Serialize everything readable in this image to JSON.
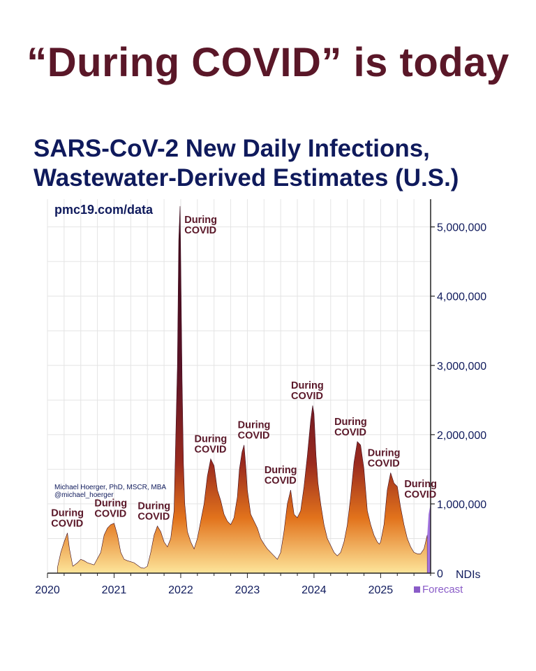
{
  "headline": "“During COVID” is today",
  "chart_data": {
    "type": "area",
    "title_lines": [
      "SARS-CoV-2 New Daily Infections,",
      "Wastewater-Derived Estimates (U.S.)"
    ],
    "source": "pmc19.com/data",
    "credit_name": "Michael Hoerger, PhD, MSCR, MBA",
    "credit_handle": "@michael_hoerger",
    "y_unit_label": "NDIs",
    "ylim": [
      0,
      5400000
    ],
    "y_ticks": [
      0,
      1000000,
      2000000,
      3000000,
      4000000,
      5000000
    ],
    "y_tick_labels": [
      "0",
      "1,000,000",
      "2,000,000",
      "3,000,000",
      "4,000,000",
      "5,000,000"
    ],
    "xlim": [
      2020.0,
      2025.75
    ],
    "x_ticks": [
      2020,
      2021,
      2022,
      2023,
      2024,
      2025
    ],
    "x_tick_labels": [
      "2020",
      "2021",
      "2022",
      "2023",
      "2024",
      "2025"
    ],
    "grid": true,
    "legend": {
      "position": "bottom-right",
      "label": "Forecast",
      "color": "#8a5cc8"
    },
    "colors": {
      "title": "#0f1a5c",
      "headline": "#5a1728",
      "annotation": "#5a1728",
      "fill_top": "#4a0e22",
      "fill_mid": "#c0481a",
      "fill_bottom": "#fcd24a",
      "forecast": "#9966dd"
    },
    "series": [
      {
        "x": [
          2020.15,
          2020.2,
          2020.25,
          2020.3,
          2020.33,
          2020.38,
          2020.45,
          2020.5,
          2020.55,
          2020.6,
          2020.7,
          2020.8,
          2020.85,
          2020.9,
          2020.95,
          2021.0,
          2021.05,
          2021.1,
          2021.15,
          2021.2,
          2021.3,
          2021.4,
          2021.45,
          2021.5,
          2021.55,
          2021.6,
          2021.65,
          2021.7,
          2021.75,
          2021.8,
          2021.85,
          2021.9,
          2021.95,
          2021.97,
          2021.99,
          2022.0,
          2022.02,
          2022.04,
          2022.06,
          2022.08,
          2022.1,
          2022.15,
          2022.2,
          2022.25,
          2022.3,
          2022.35,
          2022.4,
          2022.45,
          2022.5,
          2022.55,
          2022.6,
          2022.65,
          2022.7,
          2022.75,
          2022.8,
          2022.85,
          2022.88,
          2022.92,
          2022.95,
          2022.98,
          2023.0,
          2023.05,
          2023.1,
          2023.15,
          2023.2,
          2023.25,
          2023.3,
          2023.35,
          2023.4,
          2023.45,
          2023.5,
          2023.55,
          2023.6,
          2023.65,
          2023.7,
          2023.75,
          2023.8,
          2023.85,
          2023.9,
          2023.95,
          2023.98,
          2024.0,
          2024.03,
          2024.06,
          2024.1,
          2024.15,
          2024.2,
          2024.3,
          2024.35,
          2024.4,
          2024.45,
          2024.5,
          2024.55,
          2024.6,
          2024.65,
          2024.7,
          2024.75,
          2024.8,
          2024.85,
          2024.9,
          2024.95,
          2024.98,
          2025.0,
          2025.05,
          2025.1,
          2025.15,
          2025.2,
          2025.25,
          2025.3,
          2025.35,
          2025.4,
          2025.45,
          2025.5,
          2025.55,
          2025.6,
          2025.65,
          2025.7
        ],
        "values": [
          80000,
          300000,
          450000,
          580000,
          350000,
          100000,
          150000,
          200000,
          180000,
          150000,
          120000,
          300000,
          550000,
          650000,
          700000,
          720000,
          550000,
          300000,
          200000,
          180000,
          150000,
          80000,
          70000,
          100000,
          300000,
          550000,
          680000,
          600000,
          450000,
          380000,
          500000,
          900000,
          3000000,
          4800000,
          5300000,
          4500000,
          2800000,
          1600000,
          1000000,
          800000,
          600000,
          450000,
          350000,
          500000,
          750000,
          1000000,
          1400000,
          1650000,
          1550000,
          1200000,
          1050000,
          850000,
          750000,
          700000,
          800000,
          1100000,
          1500000,
          1750000,
          1850000,
          1500000,
          1200000,
          850000,
          750000,
          650000,
          500000,
          420000,
          350000,
          300000,
          250000,
          200000,
          300000,
          600000,
          1000000,
          1200000,
          850000,
          800000,
          900000,
          1250000,
          1700000,
          2200000,
          2420000,
          2300000,
          1700000,
          1300000,
          1000000,
          700000,
          500000,
          300000,
          250000,
          300000,
          450000,
          700000,
          1100000,
          1600000,
          1900000,
          1850000,
          1500000,
          900000,
          700000,
          550000,
          450000,
          420000,
          450000,
          700000,
          1200000,
          1450000,
          1300000,
          1250000,
          950000,
          700000,
          500000,
          380000,
          300000,
          280000,
          280000,
          350000,
          550000
        ]
      },
      {
        "name": "Forecast",
        "x": [
          2025.7,
          2025.72,
          2025.75
        ],
        "values": [
          550000,
          850000,
          1000000
        ]
      }
    ],
    "annotations": [
      {
        "label": "During COVID",
        "x": 2020.3,
        "y": 580000
      },
      {
        "label": "During COVID",
        "x": 2020.95,
        "y": 720000
      },
      {
        "label": "During COVID",
        "x": 2021.6,
        "y": 680000
      },
      {
        "label": "During COVID",
        "x": 2022.3,
        "y": 5300000
      },
      {
        "label": "During COVID",
        "x": 2022.45,
        "y": 1650000
      },
      {
        "label": "During COVID",
        "x": 2023.1,
        "y": 1850000
      },
      {
        "label": "During COVID",
        "x": 2023.5,
        "y": 1200000
      },
      {
        "label": "During COVID",
        "x": 2023.9,
        "y": 2420000
      },
      {
        "label": "During COVID",
        "x": 2024.55,
        "y": 1900000
      },
      {
        "label": "During COVID",
        "x": 2025.05,
        "y": 1450000
      },
      {
        "label": "During COVID",
        "x": 2025.6,
        "y": 1000000
      }
    ]
  }
}
